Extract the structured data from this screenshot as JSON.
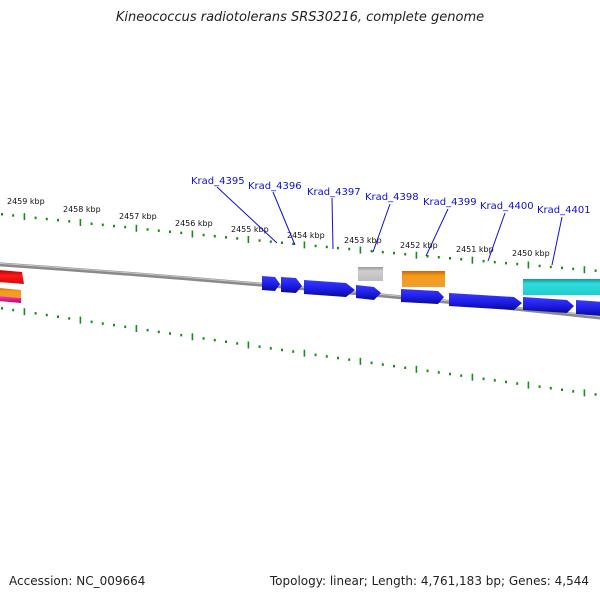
{
  "title": "Kineococcus radiotolerans SRS30216, complete genome",
  "footer": {
    "accession": "Accession: NC_009664",
    "stats": "Topology: linear; Length: 4,761,183 bp; Genes: 4,544"
  },
  "colors": {
    "backbone": "#8a8a8a",
    "tick": "#1a8a1a",
    "label": "#1010cc",
    "leader": "#1010cc",
    "gene_blue": "#1a1ae6",
    "gene_orange": "#f09010",
    "gene_gray": "#bdbdbd",
    "gene_cyan": "#1ecece",
    "gene_red": "#e01010",
    "gene_magenta": "#e0158a"
  },
  "scale_labels": [
    "2459 kbp",
    "2458 kbp",
    "2457 kbp",
    "2456 kbp",
    "2455 kbp",
    "2454 kbp",
    "2453 kbp",
    "2452 kbp",
    "2451 kbp",
    "2450 kbp"
  ],
  "gene_labels": [
    "Krad_4395",
    "Krad_4396",
    "Krad_4397",
    "Krad_4398",
    "Krad_4399",
    "Krad_4400",
    "Krad_4401"
  ]
}
